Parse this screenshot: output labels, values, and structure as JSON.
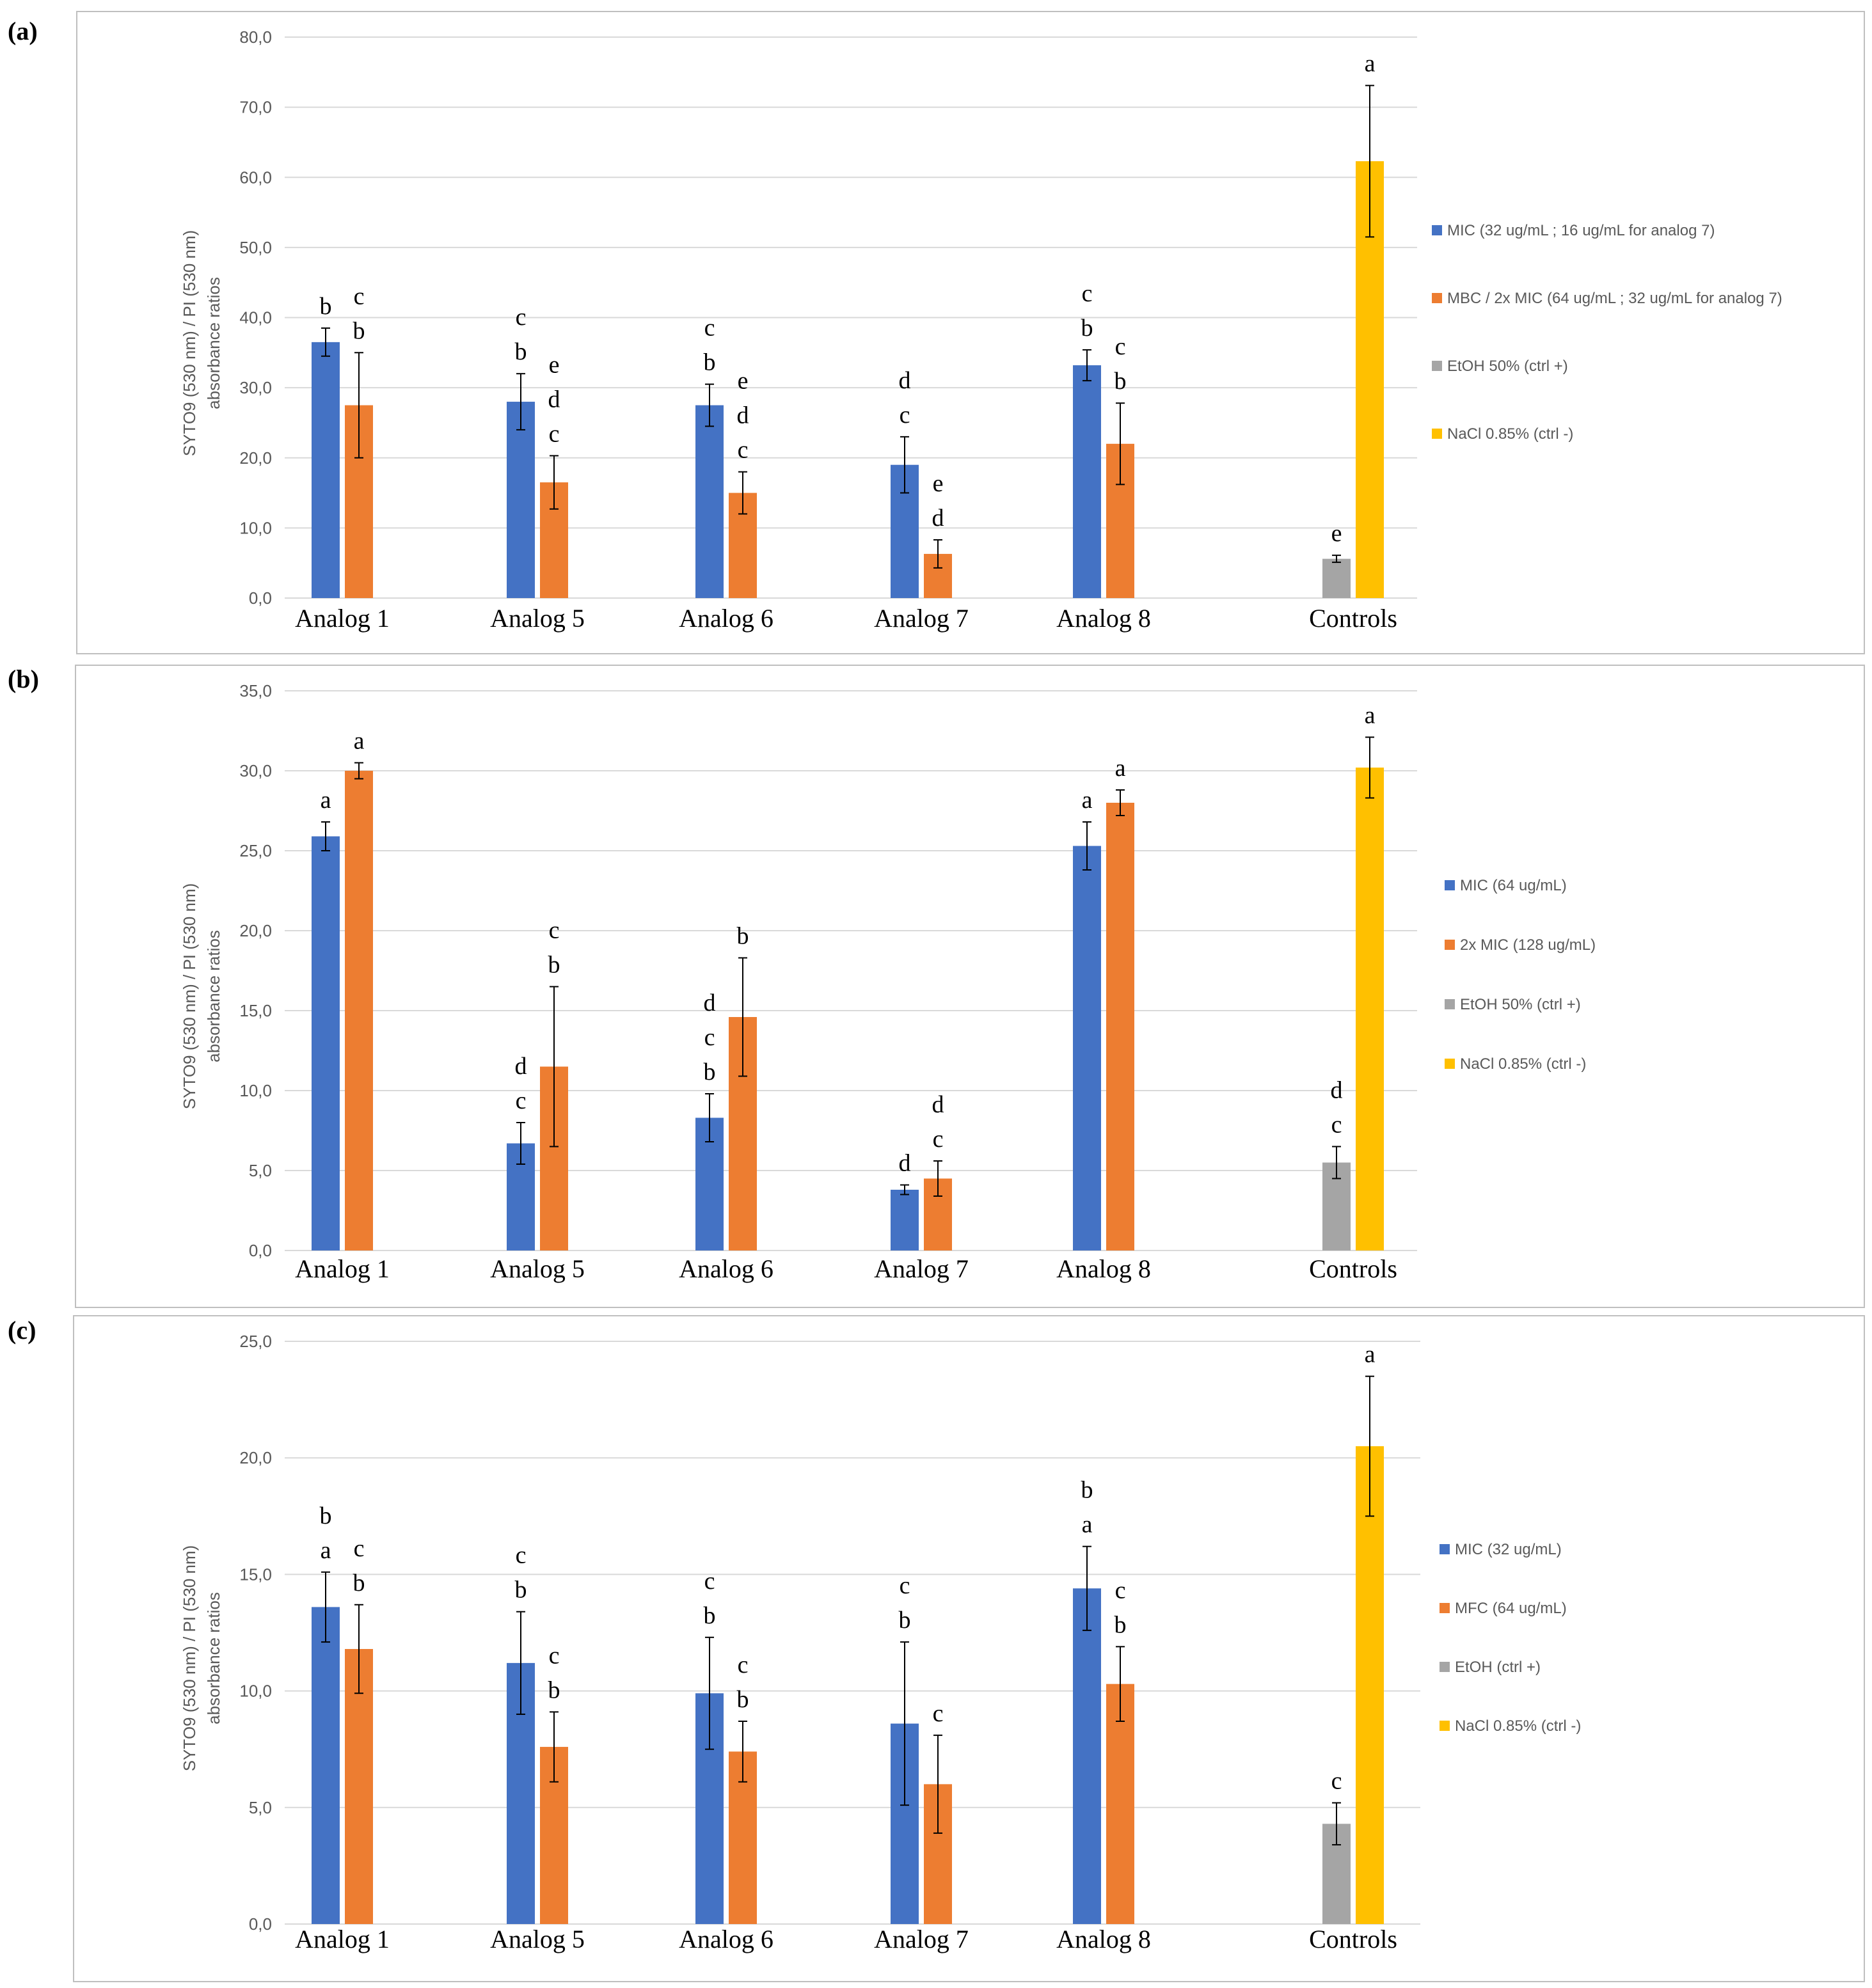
{
  "figure": {
    "panels": [
      "(a)",
      "(b)",
      "(c)"
    ]
  },
  "colors": {
    "mic": "#4472c4",
    "second": "#ed7d31",
    "etoh": "#a5a5a5",
    "nacl": "#ffc000",
    "grid": "#d9d9d9",
    "frame": "#bfbfbf",
    "text": "#000000",
    "axis_text": "#595959"
  },
  "chart_data": [
    {
      "type": "bar",
      "panel_label": "(a)",
      "ylabel_lines": [
        "SYTO9 (530 nm) / PI (530 nm)",
        "absorbance ratios"
      ],
      "ylim": [
        0,
        80
      ],
      "yticks": [
        "0,0",
        "10,0",
        "20,0",
        "30,0",
        "40,0",
        "50,0",
        "60,0",
        "70,0",
        "80,0"
      ],
      "grid": true,
      "legend_position": "right",
      "categories": [
        "Analog 1",
        "Analog 5",
        "Analog 6",
        "Analog 7",
        "Analog 8",
        "Controls"
      ],
      "series": [
        {
          "name": "MIC (32 ug/mL ; 16 ug/mL for analog 7)",
          "color_key": "mic"
        },
        {
          "name": "MBC / 2x MIC (64 ug/mL ; 32 ug/mL for analog 7)",
          "color_key": "second"
        },
        {
          "name": "EtOH 50% (ctrl +)",
          "color_key": "etoh"
        },
        {
          "name": "NaCl 0.85% (ctrl -)",
          "color_key": "nacl"
        }
      ],
      "bars": [
        {
          "category": "Analog 1",
          "series": "MIC (32 ug/mL ; 16 ug/mL for analog 7)",
          "value": 36.5,
          "err": 2.0,
          "letters": [
            "b"
          ]
        },
        {
          "category": "Analog 1",
          "series": "MBC / 2x MIC (64 ug/mL ; 32 ug/mL for analog 7)",
          "value": 27.5,
          "err": 7.5,
          "letters": [
            "c",
            "b"
          ]
        },
        {
          "category": "Analog 5",
          "series": "MIC (32 ug/mL ; 16 ug/mL for analog 7)",
          "value": 28.0,
          "err": 4.0,
          "letters": [
            "c",
            "b"
          ]
        },
        {
          "category": "Analog 5",
          "series": "MBC / 2x MIC (64 ug/mL ; 32 ug/mL for analog 7)",
          "value": 16.5,
          "err": 3.8,
          "letters": [
            "e",
            "d",
            "c"
          ]
        },
        {
          "category": "Analog 6",
          "series": "MIC (32 ug/mL ; 16 ug/mL for analog 7)",
          "value": 27.5,
          "err": 3.0,
          "letters": [
            "c",
            "b"
          ]
        },
        {
          "category": "Analog 6",
          "series": "MBC / 2x MIC (64 ug/mL ; 32 ug/mL for analog 7)",
          "value": 15.0,
          "err": 3.0,
          "letters": [
            "e",
            "d",
            "c"
          ]
        },
        {
          "category": "Analog 7",
          "series": "MIC (32 ug/mL ; 16 ug/mL for analog 7)",
          "value": 19.0,
          "err": 4.0,
          "letters": [
            "d",
            "c"
          ]
        },
        {
          "category": "Analog 7",
          "series": "MBC / 2x MIC (64 ug/mL ; 32 ug/mL for analog 7)",
          "value": 6.3,
          "err": 2.0,
          "letters": [
            "e",
            "d"
          ]
        },
        {
          "category": "Analog 8",
          "series": "MIC (32 ug/mL ; 16 ug/mL for analog 7)",
          "value": 33.2,
          "err": 2.2,
          "letters": [
            "c",
            "b"
          ]
        },
        {
          "category": "Analog 8",
          "series": "MBC / 2x MIC (64 ug/mL ; 32 ug/mL for analog 7)",
          "value": 22.0,
          "err": 5.8,
          "letters": [
            "c",
            "b"
          ]
        },
        {
          "category": "Controls",
          "series": "EtOH 50% (ctrl +)",
          "value": 5.6,
          "err": 0.5,
          "letters": [
            "e"
          ]
        },
        {
          "category": "Controls",
          "series": "NaCl 0.85% (ctrl -)",
          "value": 62.3,
          "err": 10.8,
          "letters": [
            "a"
          ]
        }
      ]
    },
    {
      "type": "bar",
      "panel_label": "(b)",
      "ylabel_lines": [
        "SYTO9 (530 nm) / PI (530 nm)",
        "absorbance ratios"
      ],
      "ylim": [
        0,
        35
      ],
      "yticks": [
        "0,0",
        "5,0",
        "10,0",
        "15,0",
        "20,0",
        "25,0",
        "30,0",
        "35,0"
      ],
      "grid": true,
      "legend_position": "right",
      "categories": [
        "Analog 1",
        "Analog 5",
        "Analog 6",
        "Analog 7",
        "Analog 8",
        "Controls"
      ],
      "series": [
        {
          "name": "MIC (64 ug/mL)",
          "color_key": "mic"
        },
        {
          "name": "2x MIC (128 ug/mL)",
          "color_key": "second"
        },
        {
          "name": "EtOH 50% (ctrl +)",
          "color_key": "etoh"
        },
        {
          "name": "NaCl 0.85% (ctrl -)",
          "color_key": "nacl"
        }
      ],
      "bars": [
        {
          "category": "Analog 1",
          "series": "MIC (64 ug/mL)",
          "value": 25.9,
          "err": 0.9,
          "letters": [
            "a"
          ]
        },
        {
          "category": "Analog 1",
          "series": "2x MIC (128 ug/mL)",
          "value": 30.0,
          "err": 0.5,
          "letters": [
            "a"
          ]
        },
        {
          "category": "Analog 5",
          "series": "MIC (64 ug/mL)",
          "value": 6.7,
          "err": 1.3,
          "letters": [
            "d",
            "c"
          ]
        },
        {
          "category": "Analog 5",
          "series": "2x MIC (128 ug/mL)",
          "value": 11.5,
          "err": 5.0,
          "letters": [
            "c",
            "b"
          ]
        },
        {
          "category": "Analog 6",
          "series": "MIC (64 ug/mL)",
          "value": 8.3,
          "err": 1.5,
          "letters": [
            "d",
            "c",
            "b"
          ]
        },
        {
          "category": "Analog 6",
          "series": "2x MIC (128 ug/mL)",
          "value": 14.6,
          "err": 3.7,
          "letters": [
            "b"
          ]
        },
        {
          "category": "Analog 7",
          "series": "MIC (64 ug/mL)",
          "value": 3.8,
          "err": 0.3,
          "letters": [
            "d"
          ]
        },
        {
          "category": "Analog 7",
          "series": "2x MIC (128 ug/mL)",
          "value": 4.5,
          "err": 1.1,
          "letters": [
            "d",
            "c"
          ]
        },
        {
          "category": "Analog 8",
          "series": "MIC (64 ug/mL)",
          "value": 25.3,
          "err": 1.5,
          "letters": [
            "a"
          ]
        },
        {
          "category": "Analog 8",
          "series": "2x MIC (128 ug/mL)",
          "value": 28.0,
          "err": 0.8,
          "letters": [
            "a"
          ]
        },
        {
          "category": "Controls",
          "series": "EtOH 50% (ctrl +)",
          "value": 5.5,
          "err": 1.0,
          "letters": [
            "d",
            "c"
          ]
        },
        {
          "category": "Controls",
          "series": "NaCl 0.85% (ctrl -)",
          "value": 30.2,
          "err": 1.9,
          "letters": [
            "a"
          ]
        }
      ]
    },
    {
      "type": "bar",
      "panel_label": "(c)",
      "ylabel_lines": [
        "SYTO9 (530 nm) / PI (530 nm)",
        "absorbance ratios"
      ],
      "ylim": [
        0,
        25
      ],
      "yticks": [
        "0,0",
        "5,0",
        "10,0",
        "15,0",
        "20,0",
        "25,0"
      ],
      "grid": true,
      "legend_position": "right",
      "categories": [
        "Analog 1",
        "Analog 5",
        "Analog 6",
        "Analog 7",
        "Analog 8",
        "Controls"
      ],
      "series": [
        {
          "name": "MIC (32 ug/mL)",
          "color_key": "mic"
        },
        {
          "name": "MFC (64 ug/mL)",
          "color_key": "second"
        },
        {
          "name": "EtOH (ctrl +)",
          "color_key": "etoh"
        },
        {
          "name": "NaCl 0.85% (ctrl -)",
          "color_key": "nacl"
        }
      ],
      "bars": [
        {
          "category": "Analog 1",
          "series": "MIC (32 ug/mL)",
          "value": 13.6,
          "err": 1.5,
          "letters": [
            "b",
            "a"
          ]
        },
        {
          "category": "Analog 1",
          "series": "MFC (64 ug/mL)",
          "value": 11.8,
          "err": 1.9,
          "letters": [
            "c",
            "b"
          ]
        },
        {
          "category": "Analog 5",
          "series": "MIC (32 ug/mL)",
          "value": 11.2,
          "err": 2.2,
          "letters": [
            "c",
            "b"
          ]
        },
        {
          "category": "Analog 5",
          "series": "MFC (64 ug/mL)",
          "value": 7.6,
          "err": 1.5,
          "letters": [
            "c",
            "b"
          ]
        },
        {
          "category": "Analog 6",
          "series": "MIC (32 ug/mL)",
          "value": 9.9,
          "err": 2.4,
          "letters": [
            "c",
            "b"
          ]
        },
        {
          "category": "Analog 6",
          "series": "MFC (64 ug/mL)",
          "value": 7.4,
          "err": 1.3,
          "letters": [
            "c",
            "b"
          ]
        },
        {
          "category": "Analog 7",
          "series": "MIC (32 ug/mL)",
          "value": 8.6,
          "err": 3.5,
          "letters": [
            "c",
            "b"
          ]
        },
        {
          "category": "Analog 7",
          "series": "MFC (64 ug/mL)",
          "value": 6.0,
          "err": 2.1,
          "letters": [
            "c"
          ]
        },
        {
          "category": "Analog 8",
          "series": "MIC (32 ug/mL)",
          "value": 14.4,
          "err": 1.8,
          "letters": [
            "b",
            "a"
          ]
        },
        {
          "category": "Analog 8",
          "series": "MFC (64 ug/mL)",
          "value": 10.3,
          "err": 1.6,
          "letters": [
            "c",
            "b"
          ]
        },
        {
          "category": "Controls",
          "series": "EtOH (ctrl +)",
          "value": 4.3,
          "err": 0.9,
          "letters": [
            "c"
          ]
        },
        {
          "category": "Controls",
          "series": "NaCl 0.85% (ctrl -)",
          "value": 20.5,
          "err": 3.0,
          "letters": [
            "a"
          ]
        }
      ]
    }
  ]
}
